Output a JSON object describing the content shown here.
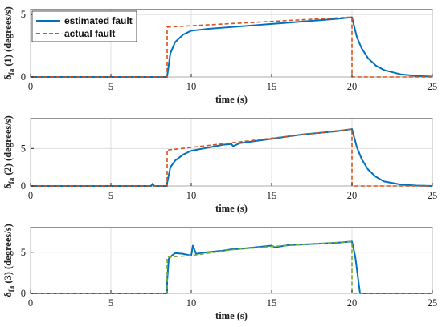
{
  "legend": {
    "position": "top-left (first panel)",
    "entries": [
      {
        "label": "estimated fault",
        "color": "#0072BD",
        "style": "solid"
      },
      {
        "label": "actual fault",
        "color": "#D95319",
        "style": "dashed"
      }
    ]
  },
  "colors": {
    "estimated": "#0072BD",
    "actual": "#D95319",
    "actual_panel3": "#77AC30",
    "axes": "#262626",
    "grid": "#d9d9d9"
  },
  "chart_data": [
    {
      "type": "line",
      "xlabel": "time (s)",
      "ylabel": "δfa (1) (degrees/s)",
      "xlim": [
        0,
        25
      ],
      "ylim": [
        0,
        5.4
      ],
      "xticks": [
        0,
        5,
        10,
        15,
        20,
        25
      ],
      "yticks": [
        0,
        5
      ],
      "grid": true,
      "series": [
        {
          "name": "estimated fault",
          "x": [
            0,
            8.5,
            8.5,
            8.7,
            9.0,
            9.5,
            10,
            11,
            12,
            13,
            14,
            15,
            16,
            17,
            18,
            19,
            20,
            20.3,
            20.6,
            21,
            21.5,
            22,
            23,
            24,
            25
          ],
          "y": [
            0,
            0,
            0.05,
            1.9,
            2.8,
            3.4,
            3.7,
            3.85,
            3.95,
            4.05,
            4.15,
            4.25,
            4.35,
            4.45,
            4.55,
            4.65,
            4.78,
            3.2,
            2.3,
            1.5,
            0.9,
            0.55,
            0.22,
            0.08,
            0.03
          ]
        },
        {
          "name": "actual fault",
          "x": [
            0,
            8.5,
            8.5,
            20,
            20,
            25
          ],
          "y": [
            0,
            0,
            4.0,
            4.8,
            0,
            0
          ]
        }
      ]
    },
    {
      "type": "line",
      "xlabel": "time (s)",
      "ylabel": "δfa (2) (degrees/s)",
      "xlim": [
        0,
        25
      ],
      "ylim": [
        0,
        9
      ],
      "xticks": [
        0,
        5,
        10,
        15,
        20,
        25
      ],
      "yticks": [
        0,
        5
      ],
      "grid": true,
      "series": [
        {
          "name": "estimated fault",
          "x": [
            0,
            7.5,
            7.6,
            7.7,
            8.5,
            8.5,
            8.7,
            9.0,
            9.5,
            10,
            11,
            12,
            12.5,
            12.6,
            13,
            14,
            15,
            16,
            17,
            18,
            19,
            20,
            20.3,
            20.6,
            21,
            21.5,
            22,
            23,
            24,
            25
          ],
          "y": [
            0,
            0,
            0.3,
            0,
            0,
            0.4,
            2.5,
            3.4,
            4.2,
            4.7,
            5.1,
            5.5,
            5.6,
            5.3,
            5.7,
            6.0,
            6.3,
            6.6,
            6.9,
            7.1,
            7.3,
            7.6,
            5.2,
            3.6,
            2.2,
            1.2,
            0.6,
            0.2,
            0.05,
            0
          ]
        },
        {
          "name": "actual fault",
          "x": [
            0,
            8.5,
            8.5,
            9.0,
            20,
            20,
            25
          ],
          "y": [
            0,
            0,
            4.8,
            4.9,
            7.6,
            0,
            0
          ]
        }
      ]
    },
    {
      "type": "line",
      "xlabel": "time (s)",
      "ylabel": "δfa (3) (degrees/s)",
      "xlim": [
        0,
        25
      ],
      "ylim": [
        0,
        8
      ],
      "xticks": [
        0,
        5,
        10,
        15,
        20,
        25
      ],
      "yticks": [
        0,
        5
      ],
      "grid": true,
      "series": [
        {
          "name": "estimated fault",
          "x": [
            0,
            8.5,
            8.5,
            8.6,
            8.8,
            9.0,
            9.5,
            10,
            10.1,
            10.3,
            11,
            12,
            12.5,
            13,
            14,
            15,
            15.2,
            16,
            17,
            18,
            19,
            20,
            20.2,
            20.4,
            20.5,
            25
          ],
          "y": [
            0,
            0,
            1.5,
            4.2,
            4.6,
            4.9,
            4.8,
            4.6,
            5.8,
            4.8,
            5.0,
            5.2,
            5.35,
            5.4,
            5.6,
            5.8,
            5.6,
            5.85,
            5.95,
            6.05,
            6.15,
            6.3,
            4.5,
            1.5,
            0,
            0
          ]
        },
        {
          "name": "actual fault",
          "x": [
            0,
            8.5,
            8.5,
            10,
            12.5,
            15,
            20,
            20,
            25
          ],
          "y": [
            0,
            0,
            4.4,
            4.6,
            5.3,
            5.7,
            6.3,
            0,
            0
          ]
        }
      ]
    }
  ]
}
